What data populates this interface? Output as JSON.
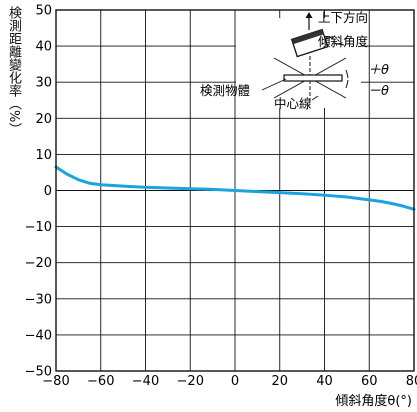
{
  "chart_data": {
    "type": "line",
    "ylabel": "検測距離變化率（%）",
    "xlabel": "傾斜角度θ(°)",
    "xlim": [
      -80,
      80
    ],
    "ylim": [
      -50,
      50
    ],
    "xticks": [
      "−80",
      "−60",
      "−40",
      "−20",
      "0",
      "20",
      "40",
      "60",
      "80"
    ],
    "yticks": [
      "50",
      "40",
      "30",
      "20",
      "10",
      "0",
      "−10",
      "−20",
      "−30",
      "−40",
      "−50"
    ],
    "grid": true,
    "series": [
      {
        "color": "#1aa3e0",
        "x": [
          -80,
          -75,
          -70,
          -65,
          -60,
          -50,
          -40,
          -30,
          -20,
          -10,
          0,
          10,
          20,
          30,
          40,
          50,
          60,
          65,
          70,
          75,
          80
        ],
        "y": [
          6.5,
          4.5,
          3.0,
          2.0,
          1.6,
          1.2,
          0.9,
          0.7,
          0.5,
          0.3,
          0,
          -0.3,
          -0.6,
          -0.9,
          -1.3,
          -1.8,
          -2.6,
          -3.0,
          -3.6,
          -4.3,
          -5.2
        ]
      }
    ],
    "inset": {
      "up_down": "上下方向",
      "tilt": "傾斜角度",
      "plus_theta": "＋θ",
      "minus_theta": "－θ",
      "object": "検測物體",
      "center_line": "中心線"
    }
  }
}
